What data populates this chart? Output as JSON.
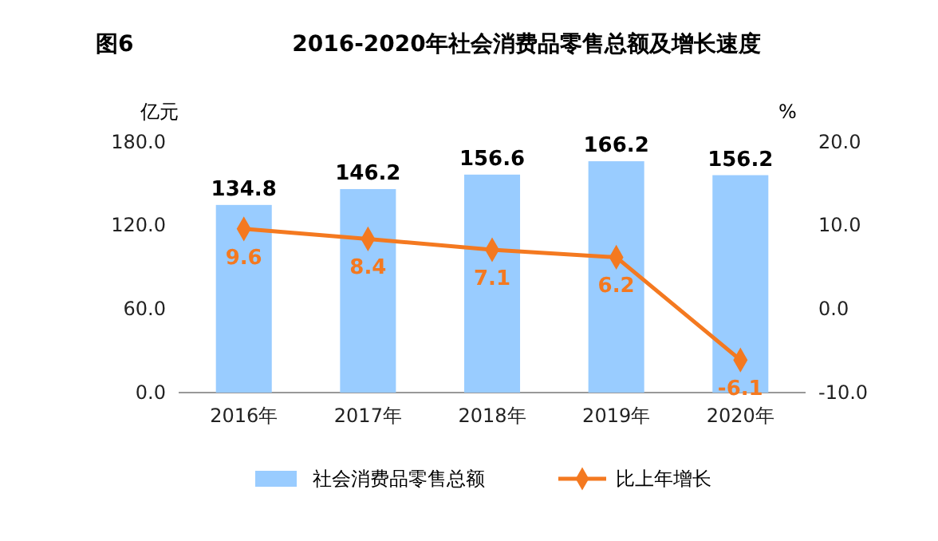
{
  "chart_data": {
    "type": "bar",
    "title": "2016-2020年社会消费品零售总额及增长速度",
    "annotations": [
      "图6"
    ],
    "categories": [
      "2016年",
      "2017年",
      "2018年",
      "2019年",
      "2020年"
    ],
    "series": [
      {
        "name": "社会消费品零售总额",
        "color": "#99ccff",
        "values": [
          134.8,
          146.2,
          156.6,
          166.2,
          156.2
        ]
      },
      {
        "name": "比上年增长",
        "type": "line",
        "axis": "y2",
        "color": "#f47920",
        "values": [
          9.6,
          8.4,
          7.1,
          6.2,
          -6.1
        ],
        "marker": "diamond"
      }
    ],
    "ylabel": "亿元",
    "y2label": "%",
    "ylim": [
      0,
      180
    ],
    "yticks": [
      {
        "value": 0,
        "label": "0.0"
      },
      {
        "value": 60,
        "label": "60.0"
      },
      {
        "value": 120,
        "label": "120.0"
      },
      {
        "value": 180,
        "label": "180.0"
      }
    ],
    "y2lim": [
      -10,
      20
    ],
    "y2ticks": [
      {
        "value": -10,
        "label": "-10.0"
      },
      {
        "value": 0,
        "label": "0.0"
      },
      {
        "value": 10,
        "label": "10.0"
      },
      {
        "value": 20,
        "label": "20.0"
      }
    ],
    "data_labels": true,
    "legend": "bottom",
    "grid": false
  }
}
